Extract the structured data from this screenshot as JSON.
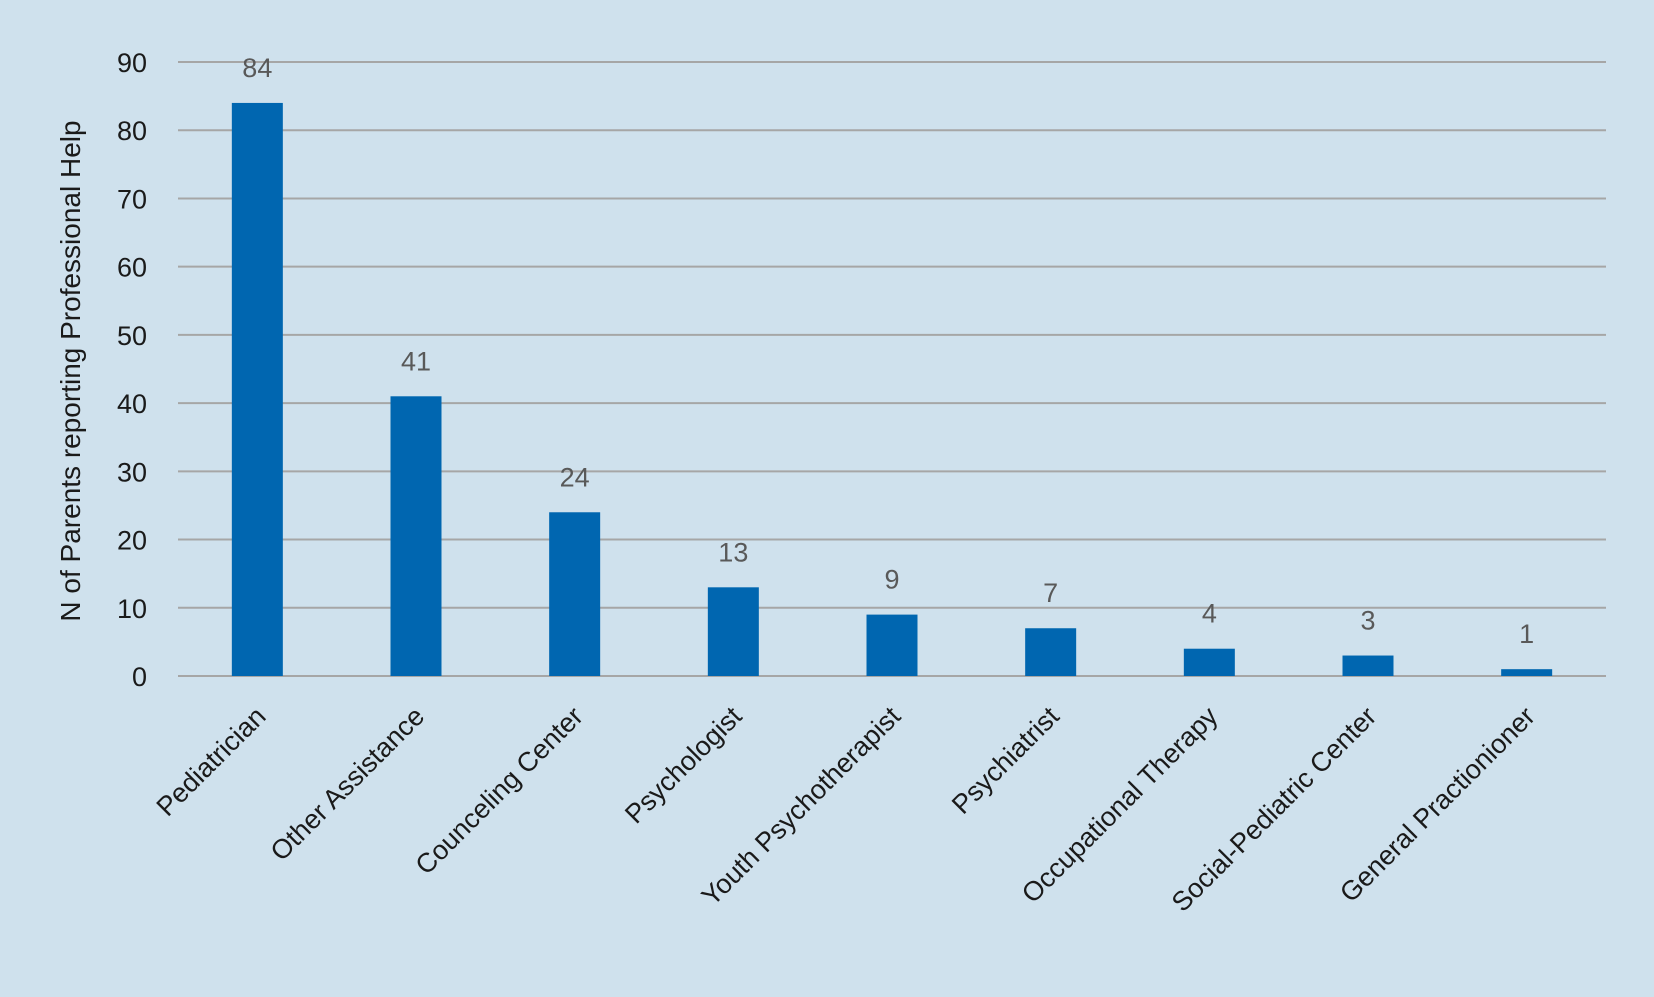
{
  "chart_data": {
    "type": "bar",
    "title": "",
    "xlabel": "",
    "ylabel": "N of Parents reporting Professional Help",
    "categories": [
      "Pediatrician",
      "Other Assistance",
      "Counceling Center",
      "Psychologist",
      "Youth Psychotherapist",
      "Psychiatrist",
      "Occupational Therapy",
      "Social-Pediatric Center",
      "General Practionioner"
    ],
    "values": [
      84,
      41,
      24,
      13,
      9,
      7,
      4,
      3,
      1
    ],
    "ylim": [
      0,
      90
    ],
    "yticks": [
      0,
      10,
      20,
      30,
      40,
      50,
      60,
      70,
      80,
      90
    ],
    "grid": true,
    "legend": "none",
    "data_labels": true,
    "colors": {
      "bar": "#0066b0",
      "background": "#cfe1ed",
      "gridline": "#a6a6a6",
      "data_label": "#595959"
    }
  }
}
